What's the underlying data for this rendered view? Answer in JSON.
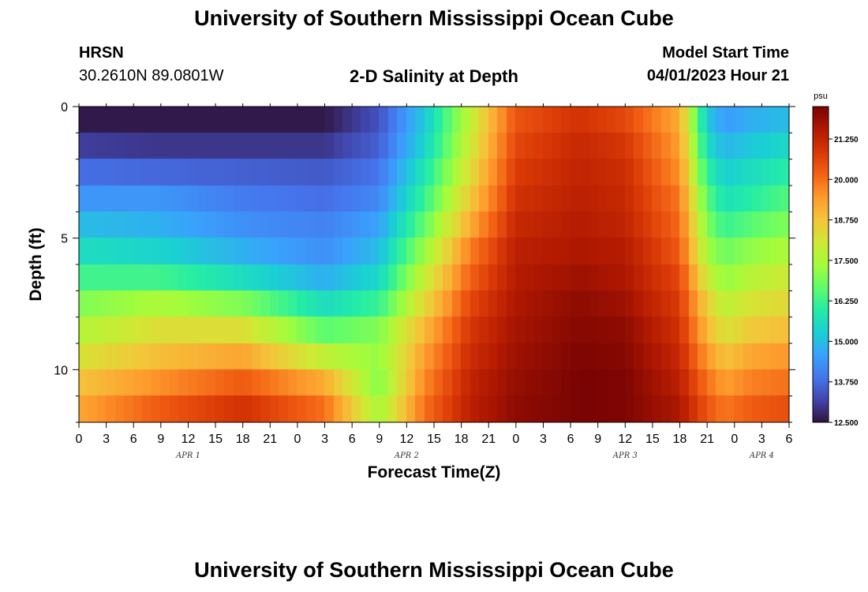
{
  "header": {
    "title": "University of Southern Mississippi Ocean Cube",
    "station": "HRSN",
    "coordinates": "30.2610N  89.0801W",
    "subtitle": "2-D Salinity at Depth",
    "model_start_label": "Model Start Time",
    "model_start_value": "04/01/2023 Hour 21"
  },
  "footer": {
    "title": "University of Southern Mississippi Ocean Cube"
  },
  "chart_data": {
    "type": "heatmap",
    "title": "2-D Salinity at Depth",
    "xlabel": "Forecast Time(Z)",
    "ylabel": "Depth (ft)",
    "x_hours_range": [
      0,
      78
    ],
    "x_tick_step_hours": 3,
    "x_tick_labels": [
      "0",
      "3",
      "6",
      "9",
      "12",
      "15",
      "18",
      "21",
      "0",
      "3",
      "6",
      "9",
      "12",
      "15",
      "18",
      "21",
      "0",
      "3",
      "6",
      "9",
      "12",
      "15",
      "18",
      "21",
      "0",
      "3",
      "6"
    ],
    "date_labels": [
      {
        "label": "APR 1",
        "hour": 12
      },
      {
        "label": "APR 2",
        "hour": 36
      },
      {
        "label": "APR 3",
        "hour": 60
      },
      {
        "label": "APR 4",
        "hour": 75
      }
    ],
    "y_range": [
      0,
      12
    ],
    "y_ticks": [
      0,
      5,
      10
    ],
    "y_tick_labels": [
      "0",
      "5",
      "10"
    ],
    "depth_levels_ft": [
      0.5,
      1.5,
      2.5,
      3.5,
      4.5,
      5.5,
      6.5,
      7.5,
      8.5,
      9.5,
      10.5,
      11.5
    ],
    "depth_levels_approx_ft": [
      0.5,
      1.5,
      2.5,
      3.5,
      4.5,
      5.5,
      6.5,
      7.5,
      8.5,
      9.5,
      10.5,
      11.5
    ],
    "colorbar": {
      "unit": "psu",
      "min": 12.5,
      "max": 22.25,
      "tick_values": [
        12.5,
        13.75,
        15.0,
        16.25,
        17.5,
        18.75,
        20.0,
        21.25
      ],
      "tick_labels": [
        "12.500",
        "13.750",
        "15.000",
        "16.250",
        "17.500",
        "18.750",
        "20.000",
        "21.250"
      ],
      "colormap": [
        "#30123b",
        "#4145ab",
        "#4675ed",
        "#39a2fc",
        "#1bcfd4",
        "#24eca6",
        "#61fc6c",
        "#a4fc3b",
        "#d1e834",
        "#f3c63a",
        "#fe9b2d",
        "#f36315",
        "#d93806",
        "#b11901",
        "#7a0403"
      ]
    },
    "salinity_keyframes": {
      "hours": [
        0,
        9,
        18,
        27,
        33,
        38,
        43,
        48,
        55,
        60,
        66,
        69,
        71,
        74,
        78
      ],
      "rows": [
        [
          12.6,
          12.6,
          12.6,
          12.6,
          13.4,
          15.2,
          17.8,
          20.4,
          21.0,
          20.6,
          19.2,
          15.2,
          14.5,
          14.8,
          15.0
        ],
        [
          13.1,
          13.0,
          13.0,
          13.0,
          13.6,
          15.4,
          18.0,
          20.6,
          21.2,
          20.9,
          19.4,
          15.6,
          14.9,
          15.2,
          15.5
        ],
        [
          13.8,
          13.7,
          13.6,
          13.5,
          13.9,
          15.8,
          18.3,
          20.8,
          21.3,
          21.1,
          19.6,
          16.1,
          15.3,
          15.6,
          16.0
        ],
        [
          14.4,
          14.4,
          14.0,
          13.8,
          14.2,
          16.2,
          18.7,
          21.0,
          21.4,
          21.2,
          19.9,
          16.6,
          15.7,
          16.0,
          16.5
        ],
        [
          15.0,
          14.8,
          14.3,
          14.1,
          14.6,
          16.7,
          19.2,
          21.2,
          21.5,
          21.3,
          20.1,
          17.0,
          16.2,
          16.6,
          17.0
        ],
        [
          15.6,
          15.4,
          14.8,
          14.3,
          15.0,
          17.3,
          19.8,
          21.4,
          21.6,
          21.5,
          20.3,
          17.4,
          16.8,
          17.2,
          17.5
        ],
        [
          16.3,
          16.3,
          15.6,
          14.8,
          15.5,
          17.9,
          20.2,
          21.5,
          21.8,
          21.6,
          20.6,
          18.0,
          17.2,
          17.7,
          18.0
        ],
        [
          17.0,
          17.5,
          17.0,
          15.6,
          16.2,
          18.4,
          20.6,
          21.6,
          22.0,
          21.8,
          20.8,
          18.6,
          17.7,
          18.2,
          18.4
        ],
        [
          17.6,
          18.3,
          18.3,
          16.6,
          17.0,
          19.0,
          20.9,
          21.7,
          22.1,
          22.0,
          21.0,
          19.0,
          18.2,
          18.7,
          18.9
        ],
        [
          18.2,
          18.9,
          19.3,
          17.8,
          17.2,
          19.4,
          21.1,
          21.8,
          22.2,
          22.1,
          21.2,
          19.5,
          18.8,
          19.3,
          19.5
        ],
        [
          18.8,
          19.6,
          20.3,
          19.2,
          17.0,
          19.7,
          21.3,
          21.9,
          22.25,
          22.2,
          21.4,
          20.0,
          19.4,
          19.8,
          20.0
        ],
        [
          19.3,
          20.3,
          21.0,
          20.0,
          17.4,
          20.0,
          21.4,
          22.0,
          22.25,
          22.2,
          21.6,
          20.4,
          19.9,
          20.3,
          20.5
        ]
      ]
    }
  }
}
